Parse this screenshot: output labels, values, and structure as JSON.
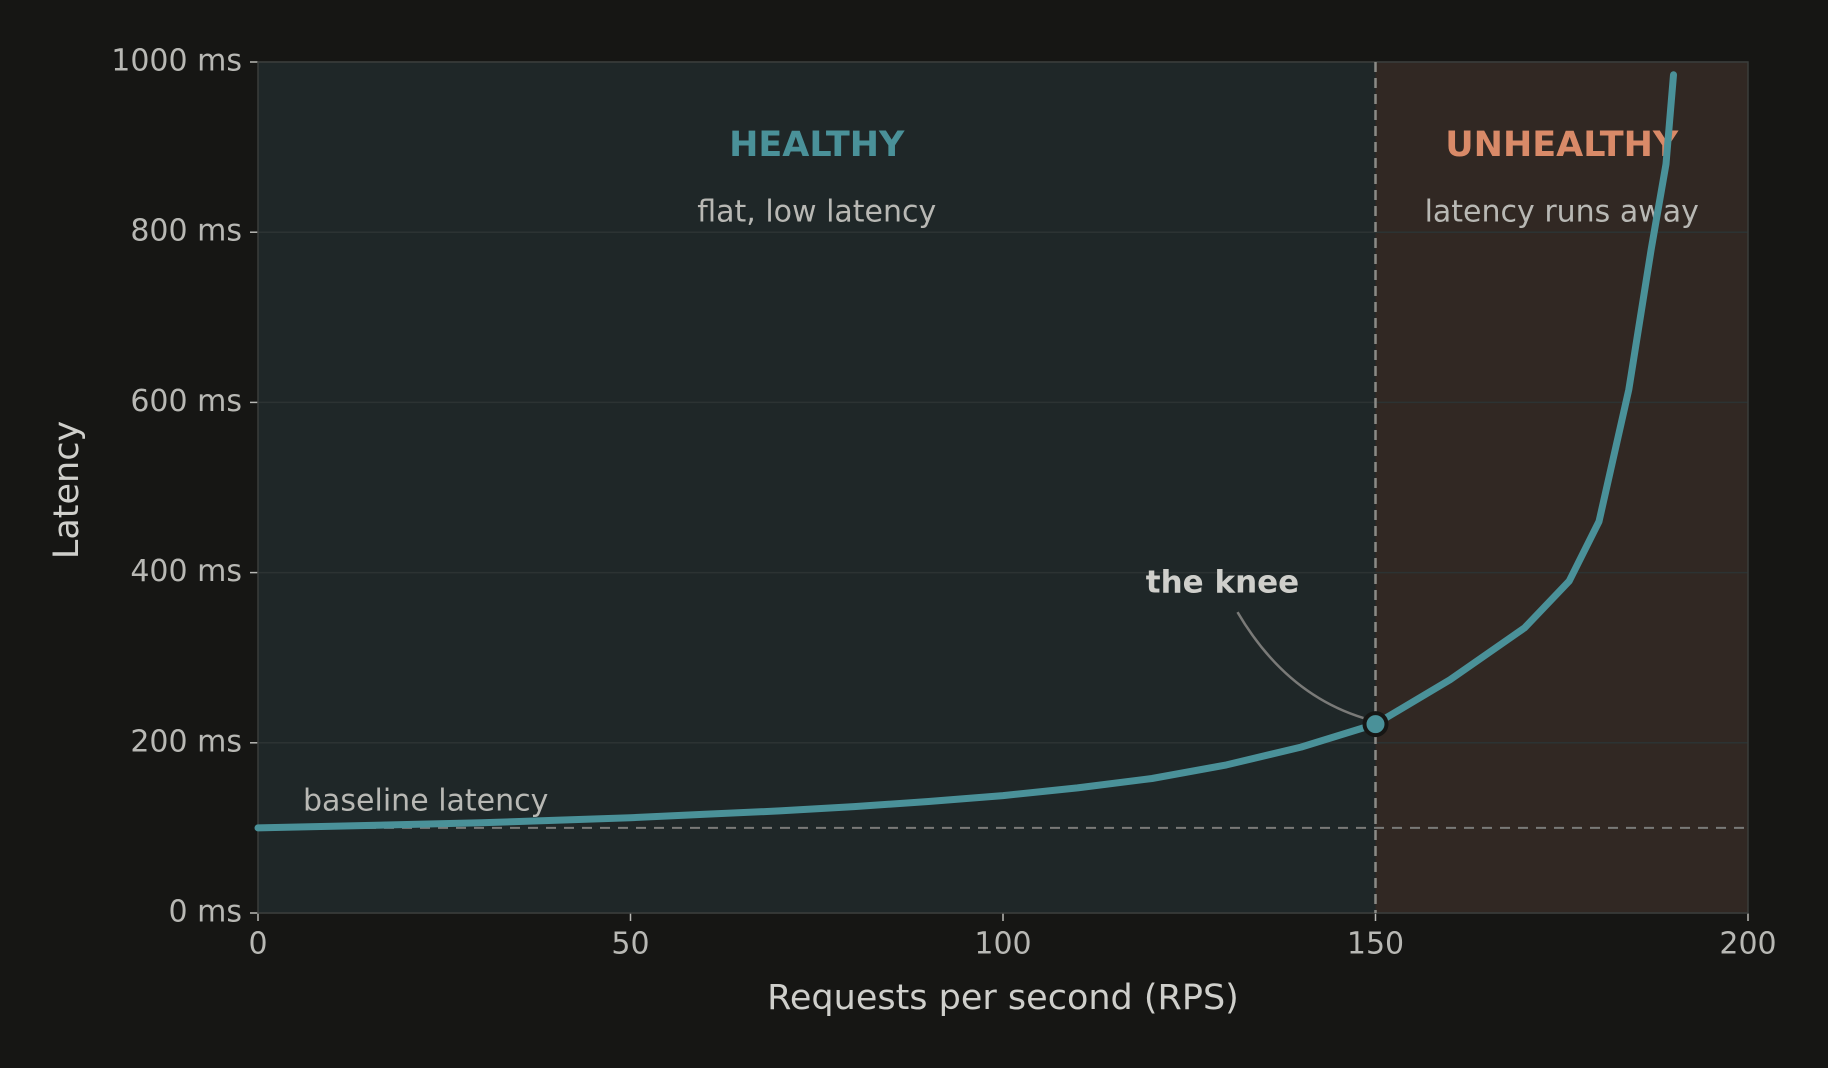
{
  "chart_data": {
    "type": "line",
    "xlabel": "Requests per second (RPS)",
    "ylabel": "Latency",
    "x": [
      0,
      10,
      20,
      30,
      40,
      50,
      60,
      70,
      80,
      90,
      100,
      110,
      120,
      130,
      140,
      150,
      160,
      170,
      176,
      180,
      184,
      187,
      189,
      190
    ],
    "values": [
      100,
      102,
      104,
      106,
      109,
      112,
      116,
      120,
      125,
      131,
      138,
      147,
      158,
      174,
      195,
      222,
      274,
      335,
      390,
      460,
      615,
      780,
      880,
      985
    ],
    "color": "#4a9199",
    "xlim": [
      0,
      200
    ],
    "xticks": [
      0,
      50,
      100,
      150,
      200
    ],
    "ylim": [
      0,
      1000
    ],
    "yticks": [
      {
        "value": 0,
        "label": "0 ms"
      },
      {
        "value": 200,
        "label": "200 ms"
      },
      {
        "value": 400,
        "label": "400 ms"
      },
      {
        "value": 600,
        "label": "600 ms"
      },
      {
        "value": 800,
        "label": "800 ms"
      },
      {
        "value": 1000,
        "label": "1000 ms"
      }
    ],
    "grid": true,
    "regions": [
      {
        "label": "HEALTHY",
        "sublabel": "flat, low latency",
        "xlim": [
          0,
          150
        ],
        "color": "#1f2728",
        "label_color": "#4a9199"
      },
      {
        "label": "UNHEALTHY",
        "sublabel": "latency runs away",
        "xlim": [
          150,
          200
        ],
        "color": "#312823",
        "label_color": "#d98a68"
      }
    ],
    "baseline": {
      "label": "baseline latency",
      "value": 100
    },
    "knee": {
      "label": "the knee",
      "x": 150,
      "y": 222
    }
  }
}
